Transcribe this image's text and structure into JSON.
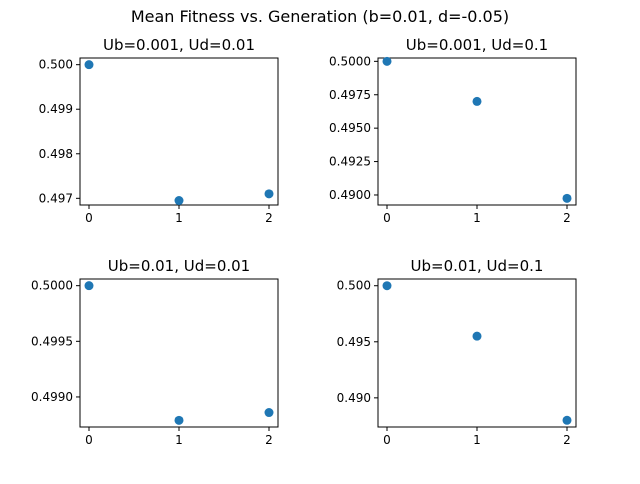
{
  "figure": {
    "title": "Mean Fitness vs. Generation (b=0.01, d=-0.05)"
  },
  "style": {
    "marker_color": "#1f77b4",
    "axis_color": "#000000",
    "background": "#ffffff"
  },
  "chart_data": [
    {
      "type": "scatter",
      "title": "Ub=0.001, Ud=0.01",
      "x": [
        0,
        1,
        2
      ],
      "y": [
        0.5,
        0.49695,
        0.4971
      ],
      "xlim": [
        -0.1,
        2.1
      ],
      "ylim": [
        0.49685,
        0.50015
      ],
      "xticks": [
        0,
        1,
        2
      ],
      "xtick_labels": [
        "0",
        "1",
        "2"
      ],
      "yticks": [
        0.497,
        0.498,
        0.499,
        0.5
      ],
      "ytick_labels": [
        "0.497",
        "0.498",
        "0.499",
        "0.500"
      ],
      "xlabel": "",
      "ylabel": "",
      "grid": false
    },
    {
      "type": "scatter",
      "title": "Ub=0.001, Ud=0.1",
      "x": [
        0,
        1,
        2
      ],
      "y": [
        0.5,
        0.497,
        0.48975
      ],
      "xlim": [
        -0.1,
        2.1
      ],
      "ylim": [
        0.48925,
        0.50025
      ],
      "xticks": [
        0,
        1,
        2
      ],
      "xtick_labels": [
        "0",
        "1",
        "2"
      ],
      "yticks": [
        0.49,
        0.4925,
        0.495,
        0.4975,
        0.5
      ],
      "ytick_labels": [
        "0.4900",
        "0.4925",
        "0.4950",
        "0.4975",
        "0.5000"
      ],
      "xlabel": "",
      "ylabel": "",
      "grid": false
    },
    {
      "type": "scatter",
      "title": "Ub=0.01, Ud=0.01",
      "x": [
        0,
        1,
        2
      ],
      "y": [
        0.5,
        0.49879,
        0.49886
      ],
      "xlim": [
        -0.1,
        2.1
      ],
      "ylim": [
        0.49873,
        0.50006
      ],
      "xticks": [
        0,
        1,
        2
      ],
      "xtick_labels": [
        "0",
        "1",
        "2"
      ],
      "yticks": [
        0.499,
        0.4995,
        0.5
      ],
      "ytick_labels": [
        "0.4990",
        "0.4995",
        "0.5000"
      ],
      "xlabel": "",
      "ylabel": "",
      "grid": false
    },
    {
      "type": "scatter",
      "title": "Ub=0.01, Ud=0.1",
      "x": [
        0,
        1,
        2
      ],
      "y": [
        0.5,
        0.4955,
        0.488
      ],
      "xlim": [
        -0.1,
        2.1
      ],
      "ylim": [
        0.4874,
        0.5006
      ],
      "xticks": [
        0,
        1,
        2
      ],
      "xtick_labels": [
        "0",
        "1",
        "2"
      ],
      "yticks": [
        0.49,
        0.495,
        0.5
      ],
      "ytick_labels": [
        "0.490",
        "0.495",
        "0.500"
      ],
      "xlabel": "",
      "ylabel": "",
      "grid": false
    }
  ]
}
